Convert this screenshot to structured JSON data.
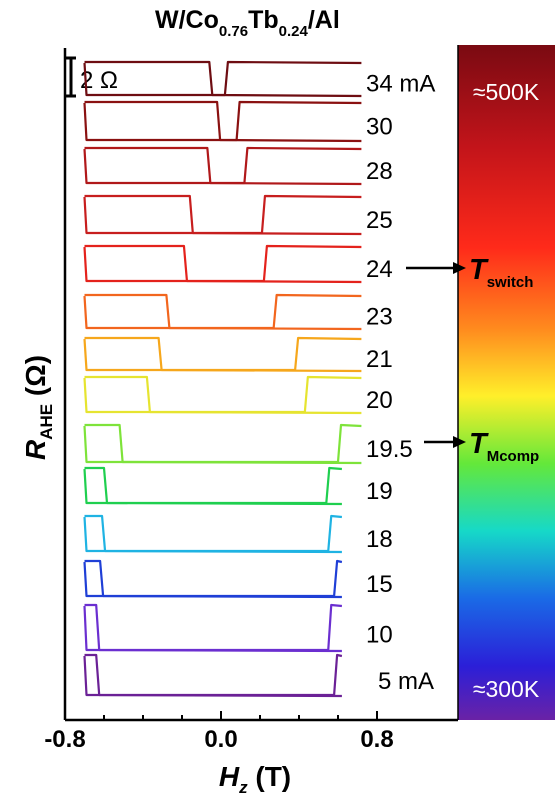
{
  "chart_data": {
    "type": "line",
    "title": {
      "main": "W/Co",
      "sub1": "0.76",
      "mid": "Tb",
      "sub2": "0.24",
      "end": "/Al"
    },
    "xlabel": {
      "main": "H",
      "sub": "z",
      "unit": " (T)"
    },
    "ylabel": {
      "main": "R",
      "sub": "AHE",
      "unit": " (Ω)"
    },
    "xlim": [
      -0.8,
      0.8
    ],
    "xticks": [
      "-0.8",
      "0.0",
      "0.8"
    ],
    "scalebar_label": "2 Ω",
    "colorbar": {
      "top_label": "≈500K",
      "bottom_label": "≈300K"
    },
    "annotations": [
      {
        "main": "T",
        "sub": "switch",
        "curve": "24"
      },
      {
        "main": "T",
        "sub": "Mcomp",
        "curve": "19.5"
      }
    ],
    "series": [
      {
        "label": "34 mA",
        "current_mA": 34,
        "color": "#6e0d12",
        "baseline": 95,
        "height": 33,
        "hc_left": -0.06,
        "hc_right": 0.02,
        "x_end": 0.72
      },
      {
        "label": "30",
        "current_mA": 30,
        "color": "#8a1111",
        "baseline": 140,
        "height": 38,
        "hc_left": -0.02,
        "hc_right": 0.08,
        "x_end": 0.72
      },
      {
        "label": "28",
        "current_mA": 28,
        "color": "#b0181a",
        "baseline": 183,
        "height": 35,
        "hc_left": -0.07,
        "hc_right": 0.12,
        "x_end": 0.72
      },
      {
        "label": "25",
        "current_mA": 25,
        "color": "#c71e1e",
        "baseline": 233,
        "height": 37,
        "hc_left": -0.16,
        "hc_right": 0.21,
        "x_end": 0.72
      },
      {
        "label": "24",
        "current_mA": 24,
        "color": "#e4221c",
        "baseline": 281,
        "height": 35,
        "hc_left": -0.19,
        "hc_right": 0.22,
        "x_end": 0.72
      },
      {
        "label": "23",
        "current_mA": 23,
        "color": "#f2661e",
        "baseline": 328,
        "height": 33,
        "hc_left": -0.28,
        "hc_right": 0.27,
        "x_end": 0.72
      },
      {
        "label": "21",
        "current_mA": 21,
        "color": "#f6a71c",
        "baseline": 370,
        "height": 32,
        "hc_left": -0.32,
        "hc_right": 0.38,
        "x_end": 0.72
      },
      {
        "label": "20",
        "current_mA": 20,
        "color": "#e6e430",
        "baseline": 412,
        "height": 35,
        "hc_left": -0.38,
        "hc_right": 0.43,
        "x_end": 0.72
      },
      {
        "label": "19.5",
        "current_mA": 19.5,
        "color": "#7ee33a",
        "baseline": 462,
        "height": 37,
        "hc_left": -0.52,
        "hc_right": 0.6,
        "x_end": 0.72
      },
      {
        "label": "19",
        "current_mA": 19,
        "color": "#1fcf4f",
        "baseline": 503,
        "height": 35,
        "hc_left": -0.6,
        "hc_right": 0.54,
        "x_end": 0.62
      },
      {
        "label": "18",
        "current_mA": 18,
        "color": "#1fb3e3",
        "baseline": 551,
        "height": 35,
        "hc_left": -0.61,
        "hc_right": 0.55,
        "x_end": 0.62
      },
      {
        "label": "15",
        "current_mA": 15,
        "color": "#1f3fd6",
        "baseline": 596,
        "height": 35,
        "hc_left": -0.62,
        "hc_right": 0.58,
        "x_end": 0.62
      },
      {
        "label": "10",
        "current_mA": 10,
        "color": "#6b2fd0",
        "baseline": 650,
        "height": 45,
        "hc_left": -0.64,
        "hc_right": 0.55,
        "x_end": 0.62
      },
      {
        "label": "5 mA",
        "current_mA": 5,
        "color": "#6b2196",
        "baseline": 695,
        "height": 40,
        "hc_left": -0.64,
        "hc_right": 0.58,
        "x_end": 0.62
      }
    ]
  }
}
